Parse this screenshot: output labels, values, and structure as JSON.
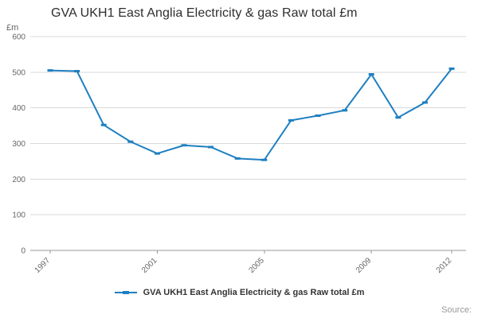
{
  "title": "GVA UKH1 East Anglia Electricity & gas Raw total £m",
  "y_unit_label": "£m",
  "source_label": "Source:",
  "legend": {
    "label": "GVA UKH1 East Anglia Electricity & gas Raw total £m"
  },
  "colors": {
    "line": "#1e7fc1",
    "grid": "#d9d9d9",
    "axis": "#999999",
    "tick_text": "#666666",
    "title_text": "#2e2e2e"
  },
  "chart_data": {
    "type": "line",
    "title": "GVA UKH1 East Anglia Electricity & gas Raw total £m",
    "xlabel": "",
    "ylabel": "£m",
    "x": [
      1997,
      1998,
      1999,
      2000,
      2001,
      2002,
      2003,
      2004,
      2005,
      2006,
      2007,
      2008,
      2009,
      2010,
      2011,
      2012
    ],
    "series": [
      {
        "name": "GVA UKH1 East Anglia Electricity & gas Raw total £m",
        "values": [
          505,
          503,
          352,
          305,
          272,
          295,
          290,
          258,
          254,
          365,
          378,
          393,
          494,
          373,
          415,
          510
        ]
      }
    ],
    "ylim": [
      0,
      600
    ],
    "ytick_step": 100,
    "yticks": [
      0,
      100,
      200,
      300,
      400,
      500,
      600
    ],
    "xticks_shown": [
      1997,
      2001,
      2005,
      2009,
      2012
    ],
    "grid": true,
    "legend_position": "bottom",
    "marker": "dash"
  }
}
